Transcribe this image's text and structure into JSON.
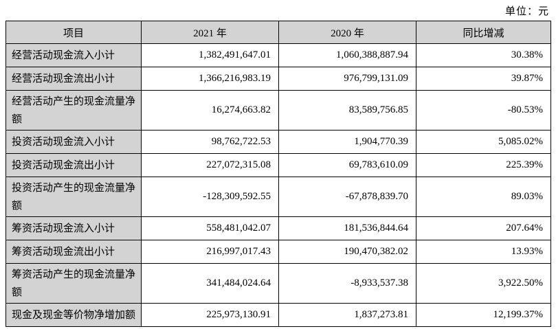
{
  "unit_label": "单位：元",
  "colors": {
    "header_bg": "#d3d3d3",
    "border": "#000000",
    "page_bg": "#ffffff"
  },
  "table": {
    "columns": {
      "item": "项目",
      "y2021": "2021 年",
      "y2020": "2020 年",
      "yoy": "同比增减"
    },
    "rows": [
      {
        "item": "经营活动现金流入小计",
        "y2021": "1,382,491,647.01",
        "y2020": "1,060,388,887.94",
        "yoy": "30.38%"
      },
      {
        "item": "经营活动现金流出小计",
        "y2021": "1,366,216,983.19",
        "y2020": "976,799,131.09",
        "yoy": "39.87%"
      },
      {
        "item": "经营活动产生的现金流量净额",
        "y2021": "16,274,663.82",
        "y2020": "83,589,756.85",
        "yoy": "-80.53%"
      },
      {
        "item": "投资活动现金流入小计",
        "y2021": "98,762,722.53",
        "y2020": "1,904,770.39",
        "yoy": "5,085.02%"
      },
      {
        "item": "投资活动现金流出小计",
        "y2021": "227,072,315.08",
        "y2020": "69,783,610.09",
        "yoy": "225.39%"
      },
      {
        "item": "投资活动产生的现金流量净额",
        "y2021": "-128,309,592.55",
        "y2020": "-67,878,839.70",
        "yoy": "89.03%"
      },
      {
        "item": "筹资活动现金流入小计",
        "y2021": "558,481,042.07",
        "y2020": "181,536,844.64",
        "yoy": "207.64%"
      },
      {
        "item": "筹资活动现金流出小计",
        "y2021": "216,997,017.43",
        "y2020": "190,470,382.02",
        "yoy": "13.93%"
      },
      {
        "item": "筹资活动产生的现金流量净额",
        "y2021": "341,484,024.64",
        "y2020": "-8,933,537.38",
        "yoy": "3,922.50%"
      },
      {
        "item": "现金及现金等价物净增加额",
        "y2021": "225,973,130.91",
        "y2020": "1,837,273.81",
        "yoy": "12,199.37%"
      }
    ]
  }
}
